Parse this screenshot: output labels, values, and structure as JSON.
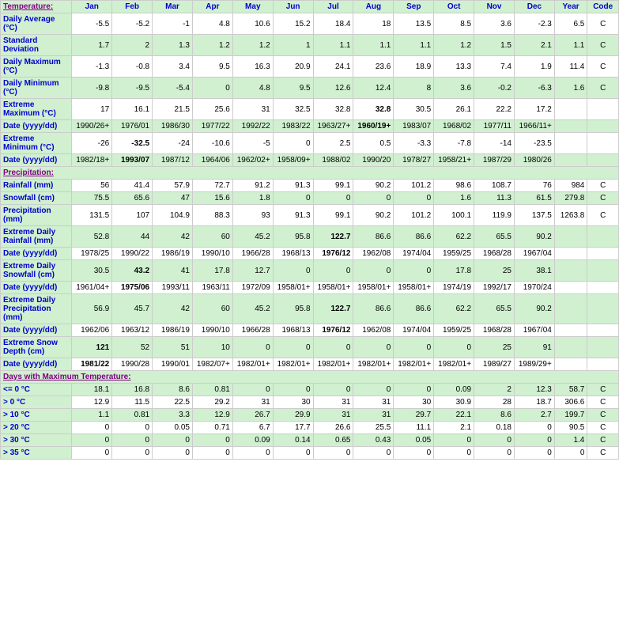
{
  "headers": {
    "label": "",
    "months": [
      "Jan",
      "Feb",
      "Mar",
      "Apr",
      "May",
      "Jun",
      "Jul",
      "Aug",
      "Sep",
      "Oct",
      "Nov",
      "Dec"
    ],
    "year": "Year",
    "code": "Code"
  },
  "sections": [
    {
      "title": "Temperature:",
      "rows": [
        {
          "label": "Daily Average (°C)",
          "alt": false,
          "vals": [
            "-5.5",
            "-5.2",
            "-1",
            "4.8",
            "10.6",
            "15.2",
            "18.4",
            "18",
            "13.5",
            "8.5",
            "3.6",
            "-2.3",
            "6.5",
            "C"
          ],
          "bold": []
        },
        {
          "label": "Standard Deviation",
          "alt": true,
          "vals": [
            "1.7",
            "2",
            "1.3",
            "1.2",
            "1.2",
            "1",
            "1.1",
            "1.1",
            "1.1",
            "1.2",
            "1.5",
            "2.1",
            "1.1",
            "C"
          ],
          "bold": []
        },
        {
          "label": "Daily Maximum (°C)",
          "alt": false,
          "vals": [
            "-1.3",
            "-0.8",
            "3.4",
            "9.5",
            "16.3",
            "20.9",
            "24.1",
            "23.6",
            "18.9",
            "13.3",
            "7.4",
            "1.9",
            "11.4",
            "C"
          ],
          "bold": []
        },
        {
          "label": "Daily Minimum (°C)",
          "alt": true,
          "vals": [
            "-9.8",
            "-9.5",
            "-5.4",
            "0",
            "4.8",
            "9.5",
            "12.6",
            "12.4",
            "8",
            "3.6",
            "-0.2",
            "-6.3",
            "1.6",
            "C"
          ],
          "bold": []
        },
        {
          "label": "Extreme Maximum (°C)",
          "alt": false,
          "vals": [
            "17",
            "16.1",
            "21.5",
            "25.6",
            "31",
            "32.5",
            "32.8",
            "32.8",
            "30.5",
            "26.1",
            "22.2",
            "17.2",
            "",
            ""
          ],
          "bold": [
            7
          ]
        },
        {
          "label": "Date (yyyy/dd)",
          "alt": true,
          "vals": [
            "1990/26+",
            "1976/01",
            "1986/30",
            "1977/22",
            "1992/22",
            "1983/22",
            "1963/27+",
            "1960/19+",
            "1983/07",
            "1968/02",
            "1977/11",
            "1966/11+",
            "",
            ""
          ],
          "bold": [
            7
          ]
        },
        {
          "label": "Extreme Minimum (°C)",
          "alt": false,
          "vals": [
            "-26",
            "-32.5",
            "-24",
            "-10.6",
            "-5",
            "0",
            "2.5",
            "0.5",
            "-3.3",
            "-7.8",
            "-14",
            "-23.5",
            "",
            ""
          ],
          "bold": [
            1
          ]
        },
        {
          "label": "Date (yyyy/dd)",
          "alt": true,
          "vals": [
            "1982/18+",
            "1993/07",
            "1987/12",
            "1964/06",
            "1962/02+",
            "1958/09+",
            "1988/02",
            "1990/20",
            "1978/27",
            "1958/21+",
            "1987/29",
            "1980/26",
            "",
            ""
          ],
          "bold": [
            1
          ]
        }
      ]
    },
    {
      "title": "Precipitation:",
      "rows": [
        {
          "label": "Rainfall (mm)",
          "alt": false,
          "vals": [
            "56",
            "41.4",
            "57.9",
            "72.7",
            "91.2",
            "91.3",
            "99.1",
            "90.2",
            "101.2",
            "98.6",
            "108.7",
            "76",
            "984",
            "C"
          ],
          "bold": []
        },
        {
          "label": "Snowfall (cm)",
          "alt": true,
          "vals": [
            "75.5",
            "65.6",
            "47",
            "15.6",
            "1.8",
            "0",
            "0",
            "0",
            "0",
            "1.6",
            "11.3",
            "61.5",
            "279.8",
            "C"
          ],
          "bold": []
        },
        {
          "label": "Precipitation (mm)",
          "alt": false,
          "vals": [
            "131.5",
            "107",
            "104.9",
            "88.3",
            "93",
            "91.3",
            "99.1",
            "90.2",
            "101.2",
            "100.1",
            "119.9",
            "137.5",
            "1263.8",
            "C"
          ],
          "bold": []
        },
        {
          "label": "Extreme Daily Rainfall (mm)",
          "alt": true,
          "vals": [
            "52.8",
            "44",
            "42",
            "60",
            "45.2",
            "95.8",
            "122.7",
            "86.6",
            "86.6",
            "62.2",
            "65.5",
            "90.2",
            "",
            ""
          ],
          "bold": [
            6
          ]
        },
        {
          "label": "Date (yyyy/dd)",
          "alt": false,
          "vals": [
            "1978/25",
            "1990/22",
            "1986/19",
            "1990/10",
            "1966/28",
            "1968/13",
            "1976/12",
            "1962/08",
            "1974/04",
            "1959/25",
            "1968/28",
            "1967/04",
            "",
            ""
          ],
          "bold": [
            6
          ]
        },
        {
          "label": "Extreme Daily Snowfall (cm)",
          "alt": true,
          "vals": [
            "30.5",
            "43.2",
            "41",
            "17.8",
            "12.7",
            "0",
            "0",
            "0",
            "0",
            "17.8",
            "25",
            "38.1",
            "",
            ""
          ],
          "bold": [
            1
          ]
        },
        {
          "label": "Date (yyyy/dd)",
          "alt": false,
          "vals": [
            "1961/04+",
            "1975/06",
            "1993/11",
            "1963/11",
            "1972/09",
            "1958/01+",
            "1958/01+",
            "1958/01+",
            "1958/01+",
            "1974/19",
            "1992/17",
            "1970/24",
            "",
            ""
          ],
          "bold": [
            1
          ]
        },
        {
          "label": "Extreme Daily Precipitation (mm)",
          "alt": true,
          "vals": [
            "56.9",
            "45.7",
            "42",
            "60",
            "45.2",
            "95.8",
            "122.7",
            "86.6",
            "86.6",
            "62.2",
            "65.5",
            "90.2",
            "",
            ""
          ],
          "bold": [
            6
          ]
        },
        {
          "label": "Date (yyyy/dd)",
          "alt": false,
          "vals": [
            "1962/06",
            "1963/12",
            "1986/19",
            "1990/10",
            "1966/28",
            "1968/13",
            "1976/12",
            "1962/08",
            "1974/04",
            "1959/25",
            "1968/28",
            "1967/04",
            "",
            ""
          ],
          "bold": [
            6
          ]
        },
        {
          "label": "Extreme Snow Depth (cm)",
          "alt": true,
          "vals": [
            "121",
            "52",
            "51",
            "10",
            "0",
            "0",
            "0",
            "0",
            "0",
            "0",
            "25",
            "91",
            "",
            ""
          ],
          "bold": [
            0
          ]
        },
        {
          "label": "Date (yyyy/dd)",
          "alt": false,
          "vals": [
            "1981/22",
            "1990/28",
            "1990/01",
            "1982/07+",
            "1982/01+",
            "1982/01+",
            "1982/01+",
            "1982/01+",
            "1982/01+",
            "1982/01+",
            "1989/27",
            "1989/29+",
            "",
            ""
          ],
          "bold": [
            0
          ]
        }
      ]
    },
    {
      "title": "Days with Maximum Temperature:",
      "rows": [
        {
          "label": "<= 0 °C",
          "alt": true,
          "vals": [
            "18.1",
            "16.8",
            "8.6",
            "0.81",
            "0",
            "0",
            "0",
            "0",
            "0",
            "0.09",
            "2",
            "12.3",
            "58.7",
            "C"
          ],
          "bold": []
        },
        {
          "label": "> 0 °C",
          "alt": false,
          "vals": [
            "12.9",
            "11.5",
            "22.5",
            "29.2",
            "31",
            "30",
            "31",
            "31",
            "30",
            "30.9",
            "28",
            "18.7",
            "306.6",
            "C"
          ],
          "bold": []
        },
        {
          "label": "> 10 °C",
          "alt": true,
          "vals": [
            "1.1",
            "0.81",
            "3.3",
            "12.9",
            "26.7",
            "29.9",
            "31",
            "31",
            "29.7",
            "22.1",
            "8.6",
            "2.7",
            "199.7",
            "C"
          ],
          "bold": []
        },
        {
          "label": "> 20 °C",
          "alt": false,
          "vals": [
            "0",
            "0",
            "0.05",
            "0.71",
            "6.7",
            "17.7",
            "26.6",
            "25.5",
            "11.1",
            "2.1",
            "0.18",
            "0",
            "90.5",
            "C"
          ],
          "bold": []
        },
        {
          "label": "> 30 °C",
          "alt": true,
          "vals": [
            "0",
            "0",
            "0",
            "0",
            "0.09",
            "0.14",
            "0.65",
            "0.43",
            "0.05",
            "0",
            "0",
            "0",
            "1.4",
            "C"
          ],
          "bold": []
        },
        {
          "label": "> 35 °C",
          "alt": false,
          "vals": [
            "0",
            "0",
            "0",
            "0",
            "0",
            "0",
            "0",
            "0",
            "0",
            "0",
            "0",
            "0",
            "0",
            "C"
          ],
          "bold": []
        }
      ]
    }
  ]
}
